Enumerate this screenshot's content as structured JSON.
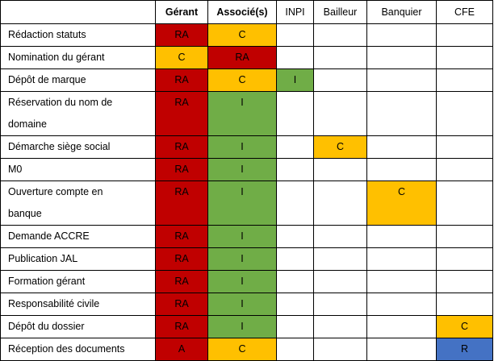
{
  "colors": {
    "R": "#c00000",
    "A": "#c00000",
    "RA": "#c00000",
    "C": "#ffc000",
    "I": "#70ad47",
    "Rblue": "#4472c4",
    "empty": "#ffffff"
  },
  "table": {
    "corner": "",
    "columns": [
      "Gérant",
      "Associé(s)",
      "INPI",
      "Bailleur",
      "Banquier",
      "CFE"
    ],
    "rows": [
      {
        "task": [
          "Rédaction statuts"
        ],
        "cells": [
          "RA",
          "C",
          "",
          "",
          "",
          ""
        ]
      },
      {
        "task": [
          "Nomination du gérant"
        ],
        "cells": [
          "C",
          "RA",
          "",
          "",
          "",
          ""
        ]
      },
      {
        "task": [
          "Dépôt de marque"
        ],
        "cells": [
          "RA",
          "C",
          "I",
          "",
          "",
          ""
        ]
      },
      {
        "task": [
          "Réservation du nom de",
          "domaine"
        ],
        "cells": [
          "RA",
          "I",
          "",
          "",
          "",
          ""
        ]
      },
      {
        "task": [
          "Démarche siège social"
        ],
        "cells": [
          "RA",
          "I",
          "",
          "C",
          "",
          ""
        ]
      },
      {
        "task": [
          "M0"
        ],
        "cells": [
          "RA",
          "I",
          "",
          "",
          "",
          ""
        ]
      },
      {
        "task": [
          "Ouverture compte en",
          "banque"
        ],
        "cells": [
          "RA",
          "I",
          "",
          "",
          "C",
          ""
        ]
      },
      {
        "task": [
          "Demande ACCRE"
        ],
        "cells": [
          "RA",
          "I",
          "",
          "",
          "",
          ""
        ]
      },
      {
        "task": [
          "Publication JAL"
        ],
        "cells": [
          "RA",
          "I",
          "",
          "",
          "",
          ""
        ]
      },
      {
        "task": [
          "Formation gérant"
        ],
        "cells": [
          "RA",
          "I",
          "",
          "",
          "",
          ""
        ]
      },
      {
        "task": [
          "Responsabilité civile"
        ],
        "cells": [
          "RA",
          "I",
          "",
          "",
          "",
          ""
        ]
      },
      {
        "task": [
          "Dépôt du dossier"
        ],
        "cells": [
          "RA",
          "I",
          "",
          "",
          "",
          "C"
        ]
      },
      {
        "task": [
          "Réception des documents"
        ],
        "cells": [
          "A",
          "C",
          "",
          "",
          "",
          "R"
        ]
      }
    ]
  }
}
